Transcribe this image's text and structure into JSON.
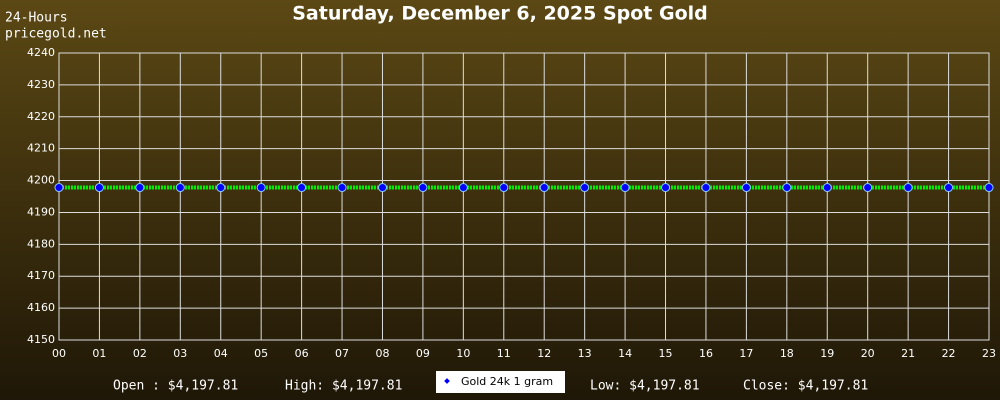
{
  "chart_data": {
    "type": "line",
    "title": "Saturday, December 6, 2025 Spot Gold",
    "subtitle": "24-Hours",
    "source": "pricegold.net",
    "categories": [
      "00",
      "01",
      "02",
      "03",
      "04",
      "05",
      "06",
      "07",
      "08",
      "09",
      "10",
      "11",
      "12",
      "13",
      "14",
      "15",
      "16",
      "17",
      "18",
      "19",
      "20",
      "21",
      "22",
      "23"
    ],
    "series": [
      {
        "name": "Gold 24k 1 gram",
        "color": "#00ee00",
        "values": [
          4197.81,
          4197.81,
          4197.81,
          4197.81,
          4197.81,
          4197.81,
          4197.81,
          4197.81,
          4197.81,
          4197.81,
          4197.81,
          4197.81,
          4197.81,
          4197.81,
          4197.81,
          4197.81,
          4197.81,
          4197.81,
          4197.81,
          4197.81,
          4197.81,
          4197.81,
          4197.81,
          4197.81
        ]
      }
    ],
    "marker_color": "#0000ff",
    "ylim": [
      4150,
      4240
    ],
    "yticks": [
      4150,
      4160,
      4170,
      4180,
      4190,
      4200,
      4210,
      4220,
      4230,
      4240
    ],
    "grid": true,
    "stats": {
      "open": "Open : $4,197.81",
      "high": "High: $4,197.81",
      "low": "Low: $4,197.81",
      "close": "Close: $4,197.81"
    }
  }
}
